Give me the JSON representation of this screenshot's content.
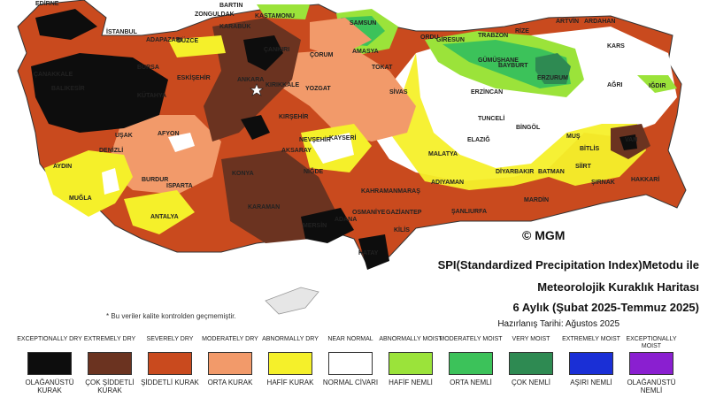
{
  "title": {
    "line1": "SPI(Standardized Precipitation Index)Metodu ile",
    "line2": "Meteorolojik Kuraklık Haritası",
    "line3": "6 Aylık (Şubat 2025-Temmuz 2025)",
    "prepared": "Hazırlanış Tarihi: Ağustos 2025"
  },
  "copyright": "© MGM",
  "note": "* Bu veriler kalite kontrolden geçmemiştir.",
  "legend": [
    {
      "en": "EXCEPTIONALLY DRY",
      "tr": "OLAĞANÜSTÜ KURAK",
      "color": "#0d0d0d"
    },
    {
      "en": "EXTREMELY DRY",
      "tr": "ÇOK ŞİDDETLİ KURAK",
      "color": "#6b3320"
    },
    {
      "en": "SEVERELY DRY",
      "tr": "ŞİDDETLİ KURAK",
      "color": "#c94a1e"
    },
    {
      "en": "MODERATELY DRY",
      "tr": "ORTA KURAK",
      "color": "#f29a6a"
    },
    {
      "en": "ABNORMALLY DRY",
      "tr": "HAFİF KURAK",
      "color": "#f5f02a"
    },
    {
      "en": "NEAR NORMAL",
      "tr": "NORMAL CİVARI",
      "color": "#ffffff"
    },
    {
      "en": "ABNORMALLY MOIST",
      "tr": "HAFİF NEMLİ",
      "color": "#9be33a"
    },
    {
      "en": "MODERATELY MOIST",
      "tr": "ORTA NEMLİ",
      "color": "#3cc25a"
    },
    {
      "en": "VERY MOIST",
      "tr": "ÇOK NEMLİ",
      "color": "#2e8a52"
    },
    {
      "en": "EXTREMELY MOIST",
      "tr": "AŞIRI NEMLİ",
      "color": "#1a2fd6"
    },
    {
      "en": "EXCEPTIONALLY MOIST",
      "tr": "OLAĞANÜSTÜ NEMLİ",
      "color": "#8a1fd0"
    }
  ],
  "cities": [
    "EDİRNE",
    "BARTIN",
    "ZONGULDAK",
    "KASTAMONU",
    "SAMSUN",
    "ORDU",
    "GİRESUN",
    "TRABZON",
    "RİZE",
    "ARTVİN",
    "ARDAHAN",
    "KARS",
    "AĞRI",
    "IĞDIR",
    "İSTANBUL",
    "ADAPAZARI",
    "DÜZCE",
    "KARABÜK",
    "ÇANKIRI",
    "ÇORUM",
    "AMASYA",
    "TOKAT",
    "GÜMÜŞHANE",
    "BAYBURT",
    "ERZURUM",
    "ERZİNCAN",
    "SİVAS",
    "TUNCELİ",
    "BİNGÖL",
    "MUŞ",
    "BİTLİS",
    "VAN",
    "ÇANAKKALE",
    "BALIKESİR",
    "BURSA",
    "ESKİŞEHİR",
    "ANKARA",
    "KIRIKKALE",
    "YOZGAT",
    "KIRŞEHİR",
    "NEVŞEHİR",
    "KAYSERİ",
    "MALATYA",
    "ELAZIĞ",
    "DİYARBAKIR",
    "BATMAN",
    "SİİRT",
    "ŞIRNAK",
    "HAKKARİ",
    "UŞAK",
    "AFYON",
    "KÜTAHYA",
    "AYDIN",
    "DENİZLİ",
    "BURDUR",
    "ISPARTA",
    "KONYA",
    "AKSARAY",
    "NİĞDE",
    "MUĞLA",
    "ANTALYA",
    "KARAMAN",
    "KAHRAMANMARAŞ",
    "ADIYAMAN",
    "ŞANLIURFA",
    "MARDİN",
    "OSMANİYE",
    "GAZİANTEP",
    "KİLİS",
    "MERSİN",
    "ADANA",
    "HATAY"
  ]
}
